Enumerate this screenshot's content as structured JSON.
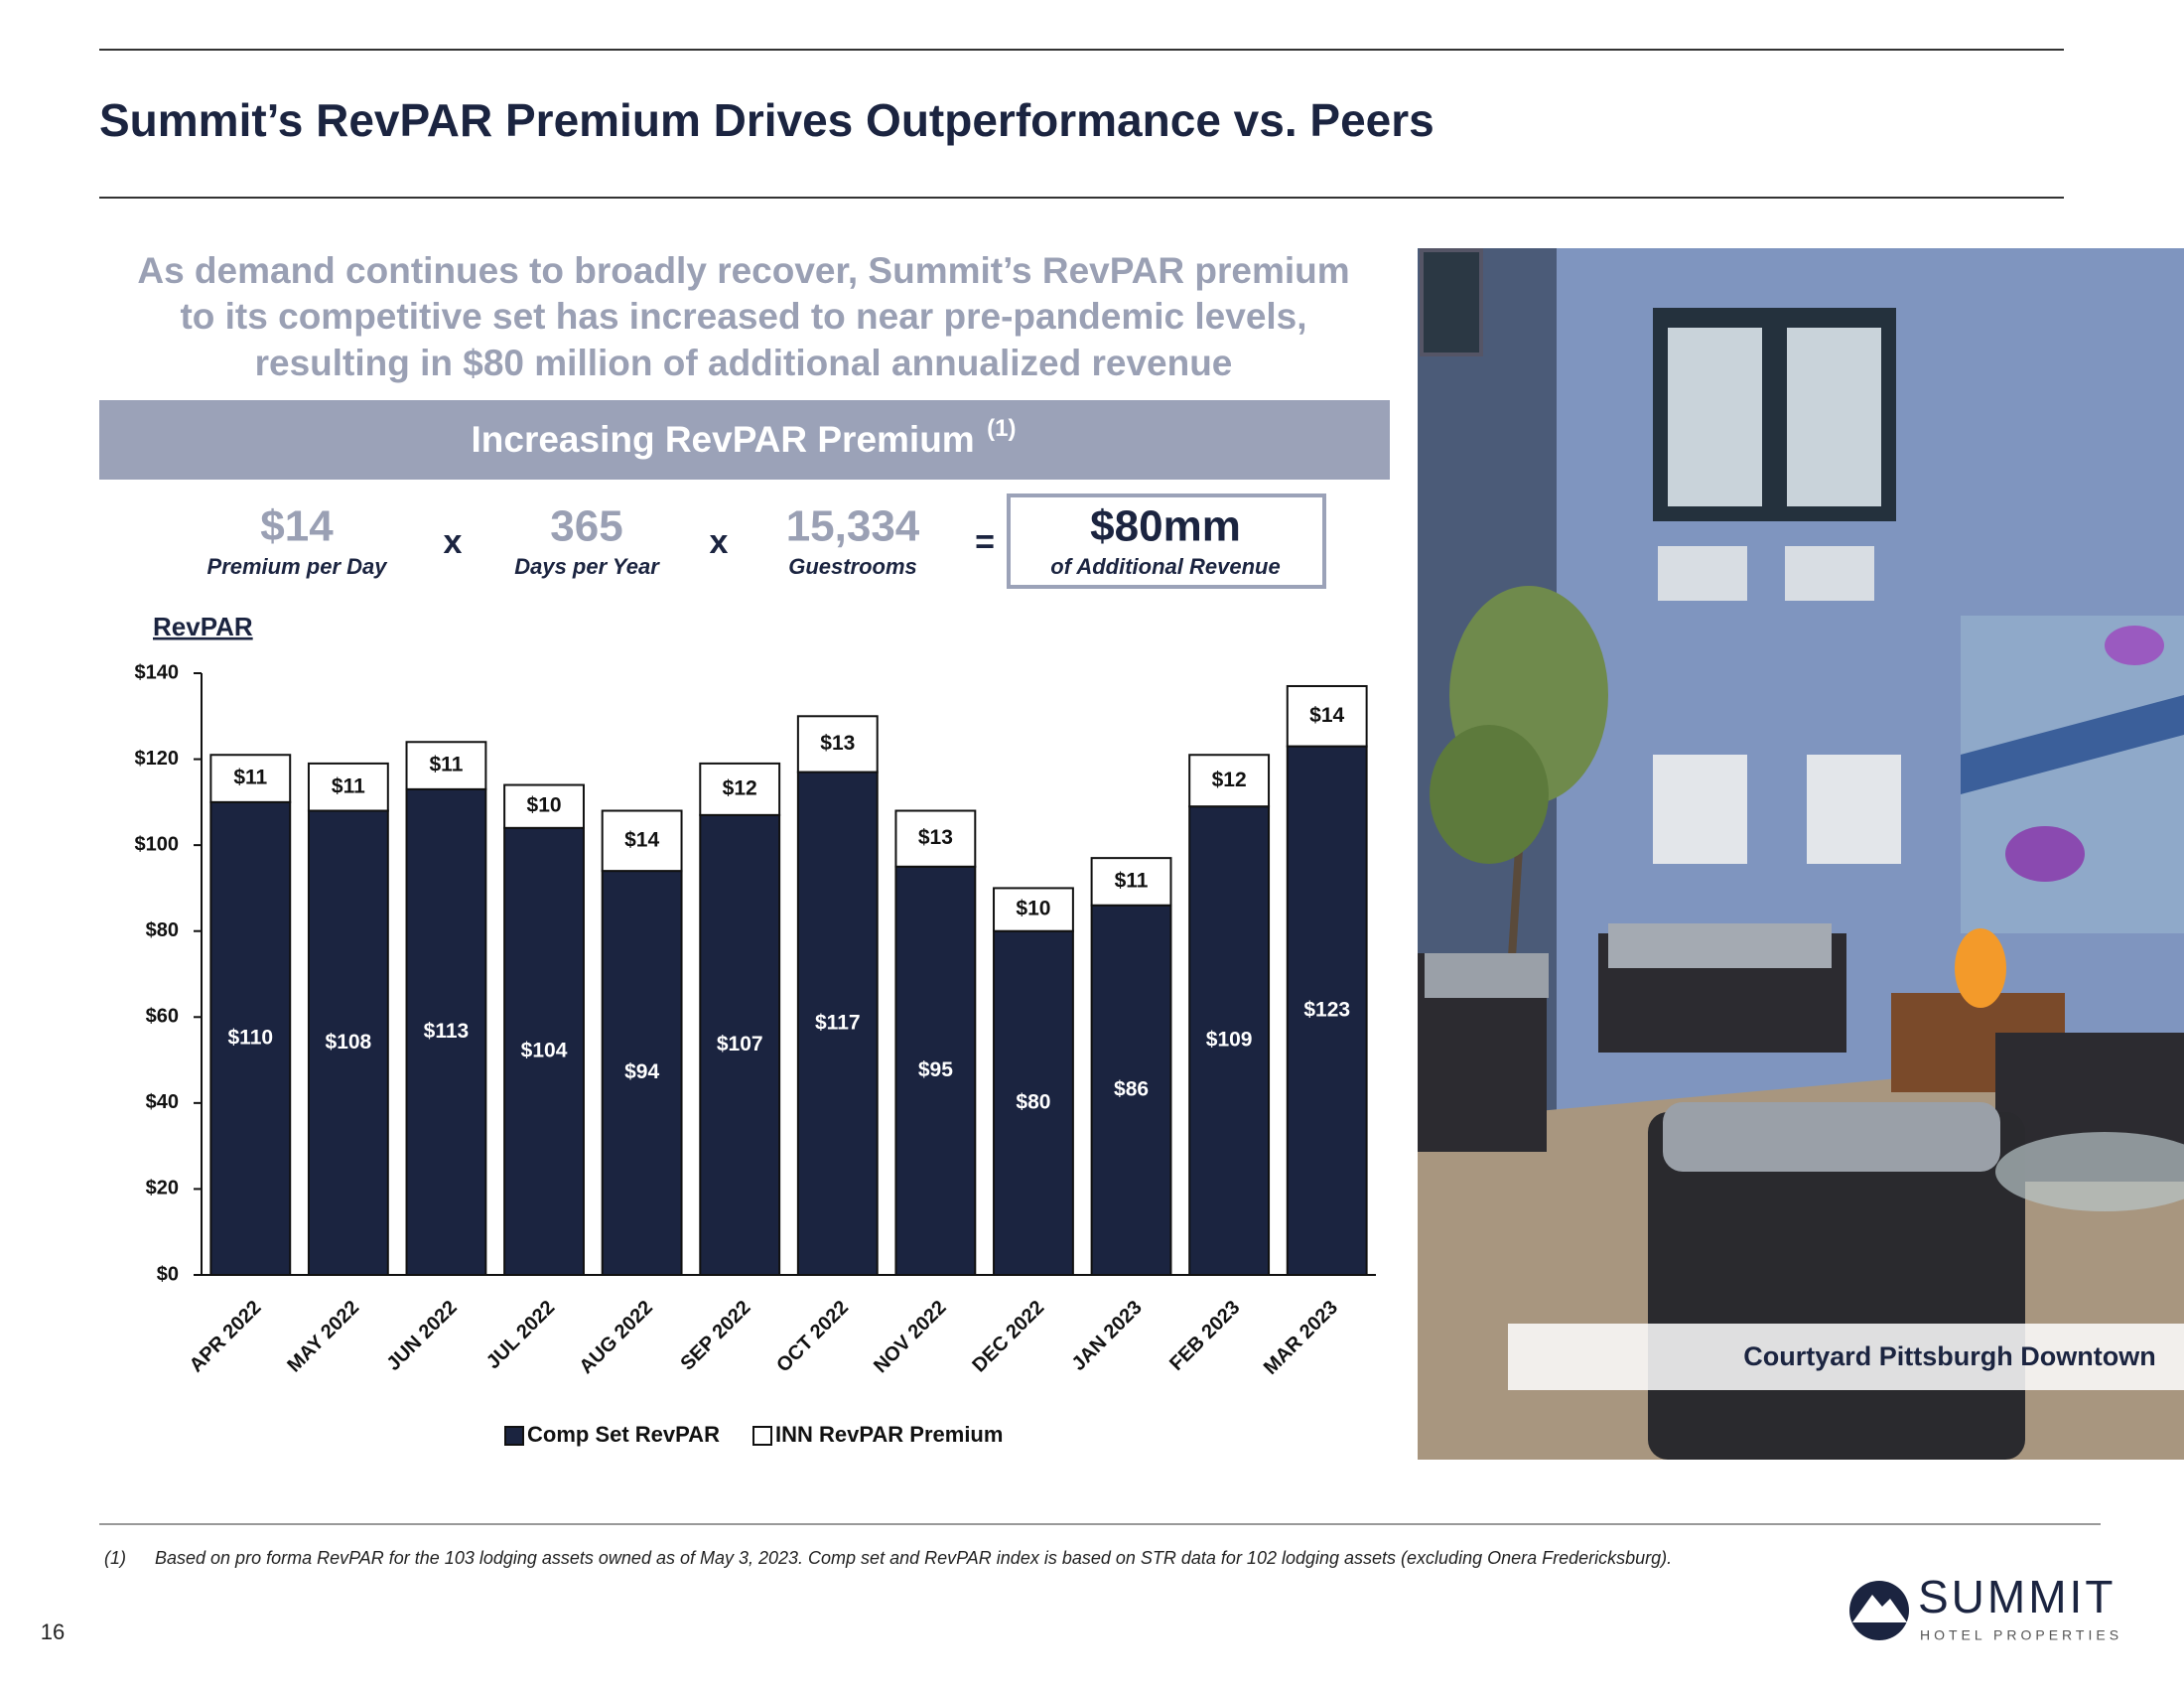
{
  "header": {
    "title": "Summit’s RevPAR Premium Drives Outperformance vs. Peers"
  },
  "subtitle": [
    "As demand continues to broadly recover, Summit’s RevPAR premium",
    "to its competitive set has increased to near pre-pandemic levels,",
    "resulting in $80 million of additional annualized revenue"
  ],
  "banner": {
    "title": "Increasing RevPAR Premium",
    "note": "(1)"
  },
  "formula": {
    "terms": [
      {
        "value": "$14",
        "label": "Premium per Day"
      },
      {
        "value": "365",
        "label": "Days per Year"
      },
      {
        "value": "15,334",
        "label": "Guestrooms"
      }
    ],
    "operators": [
      "x",
      "x",
      "="
    ],
    "result": {
      "value": "$80mm",
      "label": "of Additional Revenue"
    }
  },
  "chart_data": {
    "type": "bar",
    "stacked": true,
    "y_label": "RevPAR",
    "categories": [
      "APR 2022",
      "MAY 2022",
      "JUN 2022",
      "JUL 2022",
      "AUG 2022",
      "SEP 2022",
      "OCT 2022",
      "NOV 2022",
      "DEC 2022",
      "JAN 2023",
      "FEB 2023",
      "MAR 2023"
    ],
    "series": [
      {
        "name": "Comp Set RevPAR",
        "color": "#1b2440",
        "values": [
          110,
          108,
          113,
          104,
          94,
          107,
          117,
          95,
          80,
          86,
          109,
          123
        ],
        "value_labels": [
          "$110",
          "$108",
          "$113",
          "$104",
          "$94",
          "$107",
          "$117",
          "$95",
          "$80",
          "$86",
          "$109",
          "$123"
        ]
      },
      {
        "name": "INN RevPAR Premium",
        "color": "#ffffff",
        "values": [
          11,
          11,
          11,
          10,
          14,
          12,
          13,
          13,
          10,
          11,
          12,
          14
        ],
        "value_labels": [
          "$11",
          "$11",
          "$11",
          "$10",
          "$14",
          "$12",
          "$13",
          "$13",
          "$10",
          "$11",
          "$12",
          "$14"
        ]
      }
    ],
    "ylim": [
      0,
      140
    ],
    "yticks": [
      {
        "value": 0,
        "label": "$0"
      },
      {
        "value": 20,
        "label": "$20"
      },
      {
        "value": 40,
        "label": "$40"
      },
      {
        "value": 60,
        "label": "$60"
      },
      {
        "value": 80,
        "label": "$80"
      },
      {
        "value": 100,
        "label": "$100"
      },
      {
        "value": 120,
        "label": "$120"
      },
      {
        "value": 140,
        "label": "$140"
      }
    ],
    "grid": false,
    "legend": "bottom"
  },
  "photo": {
    "caption": "Courtyard Pittsburgh Downtown"
  },
  "footnote": {
    "marker": "(1)",
    "text": "Based on pro forma RevPAR for the 103 lodging assets owned as of May 3, 2023. Comp set and RevPAR index is based on STR data for 102 lodging assets (excluding Onera Fredericksburg)."
  },
  "page_number": "16",
  "logo": {
    "name": "SUMMIT",
    "tagline": "HOTEL PROPERTIES"
  }
}
